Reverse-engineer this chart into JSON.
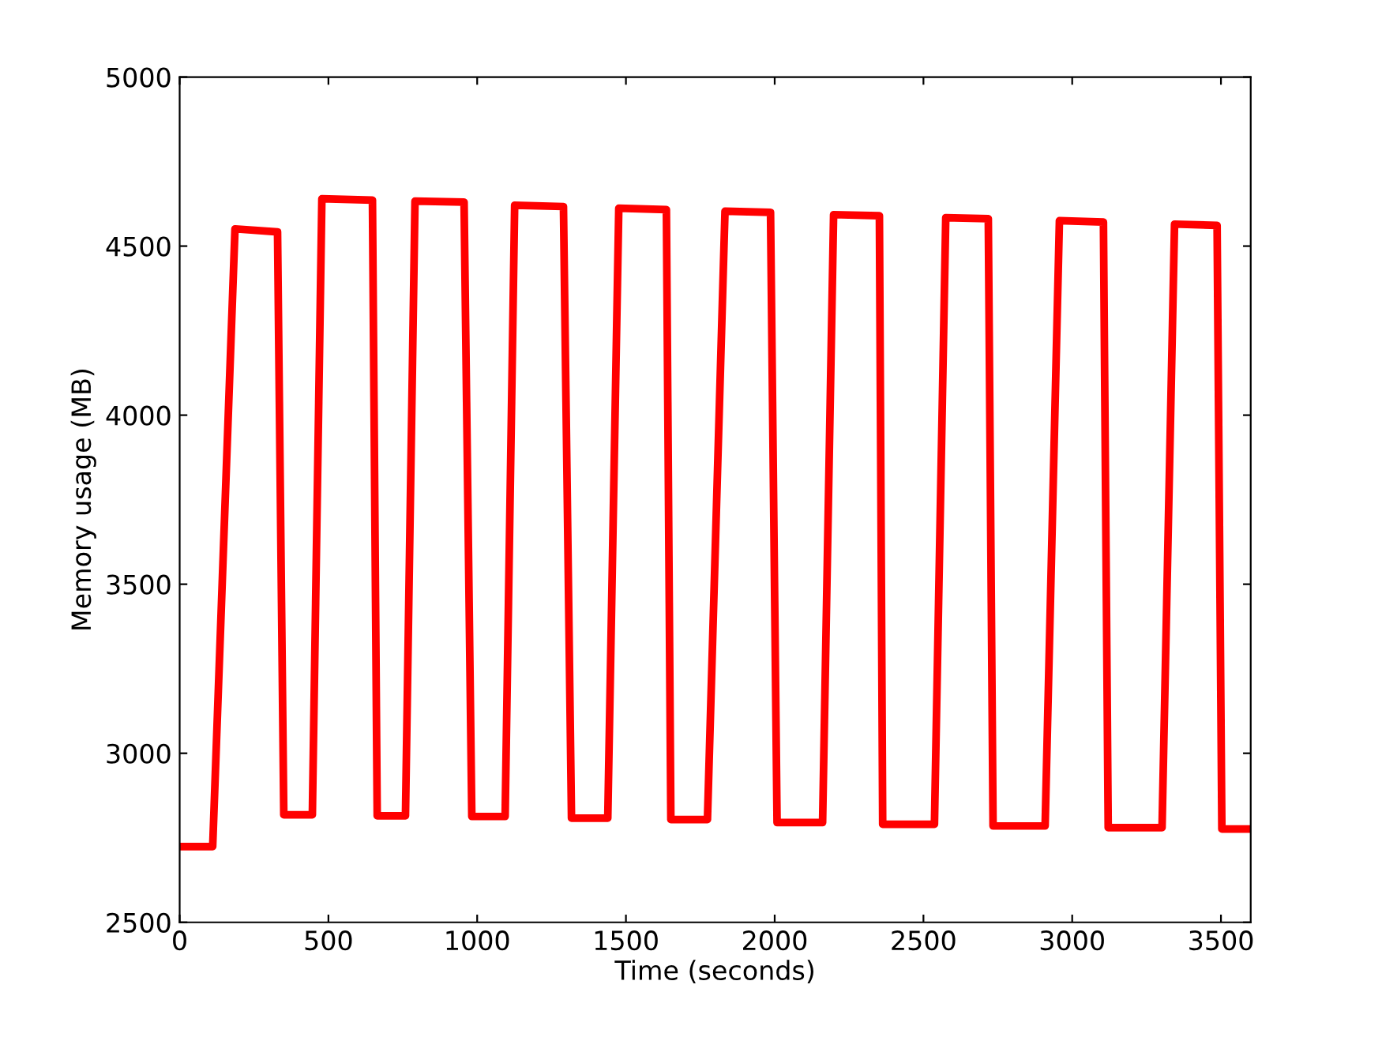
{
  "chart_data": {
    "type": "line",
    "xlabel": "Time (seconds)",
    "ylabel": "Memory usage (MB)",
    "xlim": [
      0,
      3600
    ],
    "ylim": [
      2500,
      5000
    ],
    "xticks": [
      0,
      500,
      1000,
      1500,
      2000,
      2500,
      3000,
      3500
    ],
    "yticks": [
      2500,
      3000,
      3500,
      4000,
      4500,
      5000
    ],
    "grid": false,
    "marker": "none",
    "line_style": "solid",
    "series": [
      {
        "color": "#ff0000",
        "x": [
          0,
          111,
          186,
          329,
          350,
          446,
          478,
          648,
          664,
          759,
          791,
          956,
          982,
          1094,
          1126,
          1290,
          1317,
          1439,
          1476,
          1636,
          1651,
          1774,
          1833,
          1986,
          2008,
          2161,
          2198,
          2352,
          2363,
          2537,
          2575,
          2718,
          2734,
          2909,
          2957,
          3105,
          3121,
          3302,
          3344,
          3487,
          3503,
          3600
        ],
        "values": [
          2724,
          2724,
          4551,
          4542,
          2818,
          2818,
          4640,
          4636,
          2815,
          2815,
          4633,
          4630,
          2813,
          2813,
          4621,
          4617,
          2808,
          2808,
          4612,
          4608,
          2804,
          2804,
          4603,
          4600,
          2795,
          2795,
          4593,
          4590,
          2790,
          2790,
          4584,
          4581,
          2785,
          2785,
          4575,
          4571,
          2780,
          2780,
          4565,
          4561,
          2776,
          2776
        ]
      }
    ]
  }
}
